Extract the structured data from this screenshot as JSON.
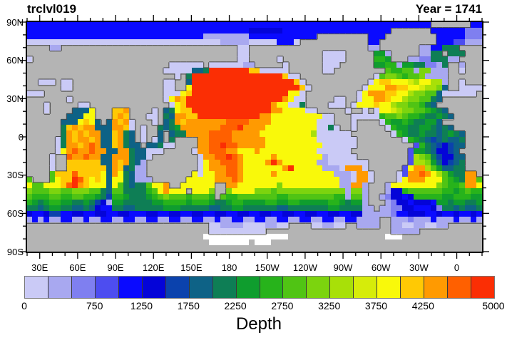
{
  "header": {
    "left_title": "trclvl019",
    "right_title": "Year = 1741"
  },
  "chart_data": {
    "type": "heatmap",
    "description": "World map (equirectangular, longitudes 20E eastward to 380E) of ocean model field trclvl019 shaded by depth; gray = land, white = Antarctic ice shelf",
    "x_axis": {
      "tick_labels": [
        "30E",
        "60E",
        "90E",
        "120E",
        "150E",
        "180",
        "150W",
        "120W",
        "90W",
        "60W",
        "30W",
        "0"
      ],
      "tick_lons_deg_east": [
        30,
        60,
        90,
        120,
        150,
        180,
        210,
        240,
        270,
        300,
        330,
        360
      ],
      "minor_tick_step_deg": 10,
      "lon_range_deg_east": [
        20,
        380
      ]
    },
    "y_axis": {
      "tick_labels": [
        "90N",
        "60N",
        "30N",
        "0",
        "30S",
        "60S",
        "90S"
      ],
      "tick_lats": [
        90,
        60,
        30,
        0,
        -30,
        -60,
        -90
      ],
      "minor_tick_step_deg": 10,
      "lat_range": [
        90,
        -90
      ]
    },
    "colorbar": {
      "title": "Depth",
      "min": 0,
      "max": 5000,
      "step": 250,
      "tick_labels": [
        "0",
        "750",
        "1250",
        "1750",
        "2250",
        "2750",
        "3250",
        "3750",
        "4250",
        "5000"
      ],
      "tick_boundary_indices": [
        0,
        3,
        5,
        7,
        9,
        11,
        13,
        15,
        17,
        20
      ],
      "colors": [
        "#cacaf6",
        "#a8a8f0",
        "#7f7ff0",
        "#4d4df0",
        "#0a0aff",
        "#0404d8",
        "#0b42ad",
        "#0e6286",
        "#0e7e55",
        "#0f9d2e",
        "#27b31b",
        "#50c414",
        "#7cd40e",
        "#a8e008",
        "#d6ec0a",
        "#f9f90a",
        "#ffc904",
        "#ff9a01",
        "#ff6000",
        "#fb2e04"
      ]
    },
    "map": {
      "land_color": "#b4b4b4",
      "coast_color": "#4a4a4a",
      "ice_shelf_color": "#ffffff",
      "palette_keys": "123456789abcdefghijk",
      "land_key": "L",
      "ice_key": "W",
      "grid_cols": 80,
      "grid_rows": 40,
      "grid": [
        "55555555555555555555555555555555555555555555555555555555555555555555555LLLLLLL55",
        "5555555555555555555555555555555555555556666665555555555555555555LLLLLLL5555553333",
        "555555555555555555555555555555522222222555555555555LLLLLLLLL555LLLLLLLLL555553333",
        "111111111111111111111111111111111122222111115551LLLLLLLLLLLL55LLLLLLLLLL555442222",
        "LLLL22LLLLLLLLLLLLLLLLLLLLLLLLLLLLLLL11LLLLLLLLLLLLLLLLLLLLL22LLLLLLL2255999LLL",
        "LLLLLLLLLLLLLLLLLLLLLLLLLLLLLLLLLLLLL11LLLLLLLLLLLLL1111LLLLLaa2LLLLL2299L999LLL",
        "1LLLLLLLLLLLLLLLLLLLLLLLLLLLLLLLLLLLL11LLLLL1LLLLLLL1111LLLLLbbaLLL223399922LLLL",
        "LLLLLLLLLLLLLLLLLLLLLLLLL111111L11111122LLLLL1LLLLLL111LLLLLLaabb2aa993329LL2LLL",
        "LLLLLLLLLLLLLLLLLLLLLLLL11111889kkkkkkkhh11111LLLLLL11LLLLLLLLLcbbcc2dd222LL1LLL",
        "LLLLLLLLLLLLLLLLLLLLLLLLLL1L9kkkkkkkkkkkkkkkkh11LLLLLLLLLLLLL1cddcbccd2222LLLLLL",
        "LL111L11LLLLLLLLLLLLLLLL11LL8kkkkkkkkkkkkkkkkkkh1LLLLLLLLLLL1ghhgggfeggee2LL1LLL",
        "LLLLLL11LLLLLLLLLLLLLLLL11LLgkkkkkkkkkkkkkkkkkkkh1LLLLLLLLL1gggiihhggfeed8LL1111",
        "111LLLLLLLLLLLLLLLLLLLLL111ghkkkkkkkkkkkkkkkkkgg1LLLLLLLLL1giiihhggeddcc8111111",
        "LLLLLLL1LLLLLLLLLLLLLLLL1gihkkkkkkkkkkkkkkkkkig11LLLLL11LL1ggiihggeddcc98LLLLLL",
        "LLL1LLLLL11LLLLLLLLLLLLLL1ghkkkkkkkkkkkkkkkigg119LLLL111L1ggghggeddccb98LLLLLL",
        "LLL1LLLL888gLLLhhiLLLL1L89ghhkkkkkkkkkkkkkkiigggg11LLLLL1LL1L1ggfeddccba98LLLLLL",
        "LLLLLLL888ggLLLhihLLL11L98iihhkkkkkkkkkkkiiggggggggg11LLL11111bccdcbba99a98LLLLLL",
        "LLLLLL888ghg8L8ihi1LLL1L89ihiiiiiiijjjjiiiigggggggg111LLL1LLLL1baaba99aa8LLLLLLL",
        "LLLLLL9hihii888iih1L1LL989aiiiiiiijjjkiiiiggggggggg1191LL1LLLLL1baa99aa9898LLLLL",
        "LLLLLL9ihihii88hi98L1LL8L899iiiijjjjiiiiiggggggggge111111LLLLLLL1ba99a9989a98LLL",
        "LLLLL19ihiihi88hi98L1L18L9LLLLiijjjjiiiiiiggggggggg1111111LLLLLLLL1ba98789889LLL",
        "LLLLL19iihiji88hi988L88911LLLLiijjkjjiiiiigggggggggg111111LLLLLLLLLL4b9876788LLL",
        "LLLLL1gijiijii88ii988111LLLLL1iijjjiigggigggggggggg111111LLLLLLLLLL4aa986678LLL",
        "LLLL1LLjiijii88iii9881LLLLLLLL1iijjkjigggggigggggggg211111LLLLLLLLL4edc976688LLL",
        "LLLL1LLhhhhhh88ihi982LLLLLLLLL1giijjjiggggikigggggg221111111LLLLLLL4eeda86789LLL",
        "LLLL1LLhhhhhhh8ih8922LLLLLLLLL1giiijjigggggggikggggg2221iii1LLLLLL4giieca8899LLL",
        "LLLLchhhjhhhhg8ig9822LLLLLLLLg1ggiijjigggggigggggggggg2221ii1LLLL14iijigeca99iiLL",
        "cLLLcghhkjhghg8gg98222LLLLLLgggggiiijiggggggggggggggggg221ii1LLLL1giiigggcba9iicc",
        "gccggghjkihggg8gc9899cggiLLggggggLLiigggggggdgggggggggg22ii2LLL2ggggggggdcbbciig",
        "dcccddccdddcc98cc9999bcgigggLgggdLLdggggdddcdddddddddddd2dd2LLL266bccccccbbabcbb",
        "cbbbccbbccbba97bba999abcdcccbcccbLcbbcccccccbbccccccccbb2cc2LL236656bbbbbaabbbaa",
        "ba9abbaa99a9762aa99999aabbbbabbba99abbaaaabbaabbaaaaabba9aa2LLL236656665aa9aa99a",
        "9989aa99889865599889 9999aaa999998899aa999999889999999aa999922L2233665556399 89889",
        "65567755665566556655566556655665566556655665566556655665566222223556665565565565",
        "25252255225225522552255225522552252255225522552255225522552222LL2223222522252252",
        "LLLLLLLLLLLLLLLLLLLLLLLLLLLLLLLL11222211112211LLLL112211LL2222LL2211221122LLLLLL",
        "LLLLLLLLLLLLLLLLLLLLLLLLLLLLLLLL1111111111LLLLLLLLLLLLLLLLLLLLLL22222LLLLLLLLLL",
        "LLLLLLLLLLLLLLLLLLLLLLLLLLLLLLLWWWWWWWWWWWWWWWLLLLLLLLLLLLLLLLLWWWLLLLLLLLLLLLL",
        "LLLLLLLLLLLLLLLLLLLLLLLLLLLLLLLLWWWWWWWLWWWLLLLLLLLLLLLLLLLLLLLLLLLLLLLLLLLLLLL",
        "LLLLLLLLLLLLLLLLLLLLLLLLLLLLLLLLLLLLLLLLLLLLLLLLLLLLLLLLLLLLLLLLLLLLLLLLLLLLLL"
      ]
    }
  }
}
